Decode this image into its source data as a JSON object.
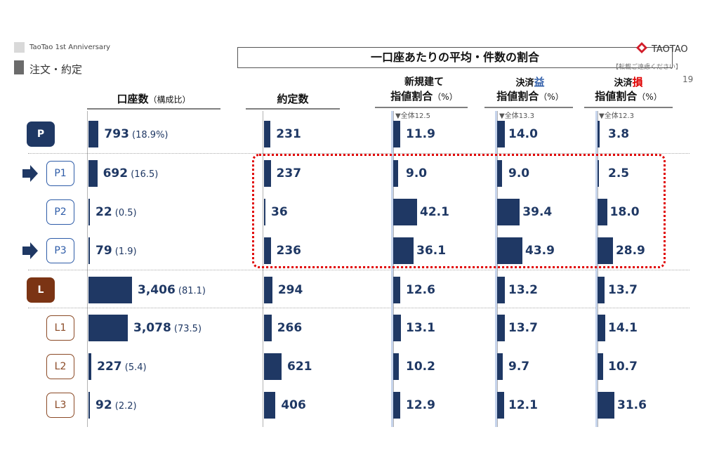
{
  "legend": {
    "item1": "TaoTao 1st Anniversary",
    "item2": "注文・約定"
  },
  "title": "一口座あたりの平均・件数の割合",
  "logo_text": "TAOTAO",
  "note": "【転載ご遠慮ください】",
  "page_number": "19",
  "headers": {
    "accounts": "口座数",
    "accounts_sub": "（構成比）",
    "contracts": "約定数",
    "new_l1": "新規建て",
    "new_l2": "指値割合",
    "new_unit": "（%）",
    "profit_l1a": "決済",
    "profit_l1b": "益",
    "profit_l2": "指値割合",
    "profit_unit": "（%）",
    "loss_l1a": "決済",
    "loss_l1b": "損",
    "loss_l2": "指値割合",
    "loss_unit": "（%）"
  },
  "averages": {
    "new": "▼全体12.5",
    "profit": "▼全体13.3",
    "loss": "▼全体12.3"
  },
  "colors": {
    "bar": "#1f3864",
    "avg_line": "#c6d4ec",
    "p_badge": "#1f3864",
    "l_badge": "#7b3414",
    "highlight": "#e00000",
    "profit_accent": "#2e5ca8",
    "loss_accent": "#e00000"
  },
  "chart_data": {
    "type": "bar",
    "categories": [
      "P",
      "P1",
      "P2",
      "P3",
      "L",
      "L1",
      "L2",
      "L3"
    ],
    "series": [
      {
        "name": "口座数",
        "values": [
          793,
          692,
          22,
          79,
          3406,
          3078,
          227,
          92
        ],
        "labels": [
          "793",
          "692",
          "22",
          "79",
          "3,406",
          "3,078",
          "227",
          "92"
        ],
        "share_labels": [
          "(18.9%)",
          "(16.5)",
          "(0.5)",
          "(1.9)",
          "(81.1)",
          "(73.5)",
          "(5.4)",
          "(2.2)"
        ]
      },
      {
        "name": "約定数",
        "values": [
          231,
          237,
          36,
          236,
          294,
          266,
          621,
          406
        ],
        "labels": [
          "231",
          "237",
          "36",
          "236",
          "294",
          "266",
          "621",
          "406"
        ]
      },
      {
        "name": "新規建て指値割合",
        "values": [
          11.9,
          9.0,
          42.1,
          36.1,
          12.6,
          13.1,
          10.2,
          12.9
        ],
        "labels": [
          "11.9",
          "9.0",
          "42.1",
          "36.1",
          "12.6",
          "13.1",
          "10.2",
          "12.9"
        ],
        "average": 12.5
      },
      {
        "name": "決済益指値割合",
        "values": [
          14.0,
          9.0,
          39.4,
          43.9,
          13.2,
          13.7,
          9.7,
          12.1
        ],
        "labels": [
          "14.0",
          "9.0",
          "39.4",
          "43.9",
          "13.2",
          "13.7",
          "9.7",
          "12.1"
        ],
        "average": 13.3
      },
      {
        "name": "決済損指値割合",
        "values": [
          3.8,
          2.5,
          18.0,
          28.9,
          13.7,
          14.1,
          10.7,
          31.6
        ],
        "labels": [
          "3.8",
          "2.5",
          "18.0",
          "28.9",
          "13.7",
          "14.1",
          "10.7",
          "31.6"
        ],
        "average": 12.3
      }
    ],
    "highlighted_rows": [
      "P1",
      "P2",
      "P3"
    ],
    "arrow_rows": [
      "P1",
      "P3"
    ]
  }
}
